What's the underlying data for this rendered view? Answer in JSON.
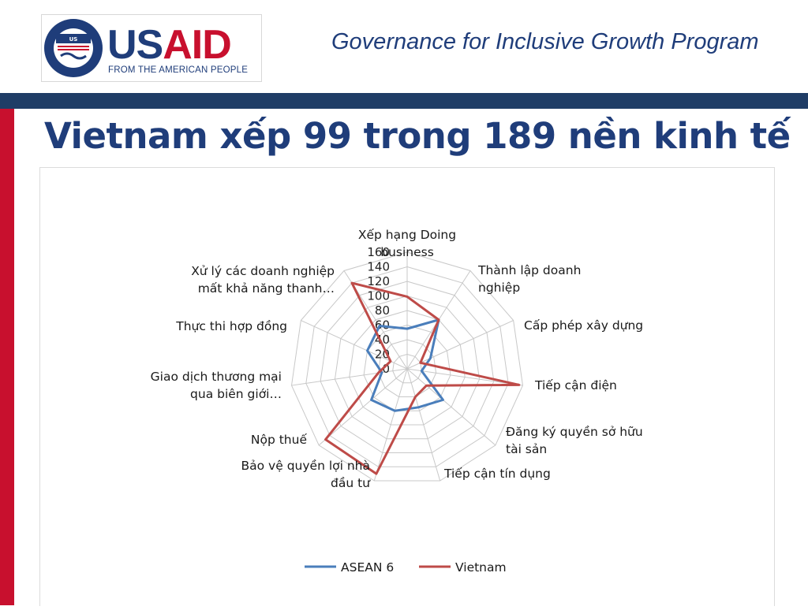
{
  "header": {
    "logo": {
      "wordmark_us": "US",
      "wordmark_aid": "AID",
      "tagline": "FROM THE AMERICAN PEOPLE",
      "seal_icon": "usaid-seal-icon",
      "seal_text": "UNITED STATES AGENCY · INTERNATIONAL DEVELOPMENT"
    },
    "program_title": "Governance for Inclusive Growth Program"
  },
  "slide": {
    "title": "Vietnam xếp 99 trong 189 nền kinh tế"
  },
  "colors": {
    "navy": "#1f3d7a",
    "red": "#c8102e",
    "asean": "#4a7ebb",
    "vietnam": "#be4b48"
  },
  "chart_data": {
    "type": "radar",
    "categories": [
      "Xếp hạng Doing business",
      "Thành lập doanh nghiệp",
      "Cấp phép xây dựng",
      "Tiếp cận điện",
      "Đăng ký quyền sở hữu tài sản",
      "Tiếp cận tín dụng",
      "Bảo vệ quyền lợi nhà đầu tư",
      "Nộp thuế",
      "Giao dịch thương mại qua biên giới…",
      "Thực thi hợp đồng",
      "Xử lý các doanh nghiệp mất khả năng thanh…"
    ],
    "category_lines": [
      [
        "Xếp hạng Doing",
        "business"
      ],
      [
        "Thành lập doanh",
        "nghiệp"
      ],
      [
        "Cấp phép xây dựng"
      ],
      [
        "Tiếp cận điện"
      ],
      [
        "Đăng ký quyền sở hữu",
        "tài sản"
      ],
      [
        "Tiếp cận tín dụng"
      ],
      [
        "Bảo vệ quyền lợi nhà",
        "đầu tư"
      ],
      [
        "Nộp thuế"
      ],
      [
        "Giao dịch thương mại",
        "qua biên giới…"
      ],
      [
        "Thực thi hợp đồng"
      ],
      [
        "Xử lý các doanh nghiệp",
        "mất khả năng thanh…"
      ]
    ],
    "series": [
      {
        "name": "ASEAN 6",
        "values": [
          55,
          80,
          35,
          20,
          65,
          55,
          60,
          65,
          35,
          60,
          70
        ]
      },
      {
        "name": "Vietnam",
        "values": [
          99,
          80,
          20,
          155,
          35,
          40,
          150,
          148,
          40,
          25,
          140
        ]
      }
    ],
    "ticks": [
      "0",
      "20",
      "40",
      "60",
      "80",
      "100",
      "120",
      "140",
      "160"
    ],
    "rmax": 160,
    "grid": true,
    "legend": "bottom"
  }
}
